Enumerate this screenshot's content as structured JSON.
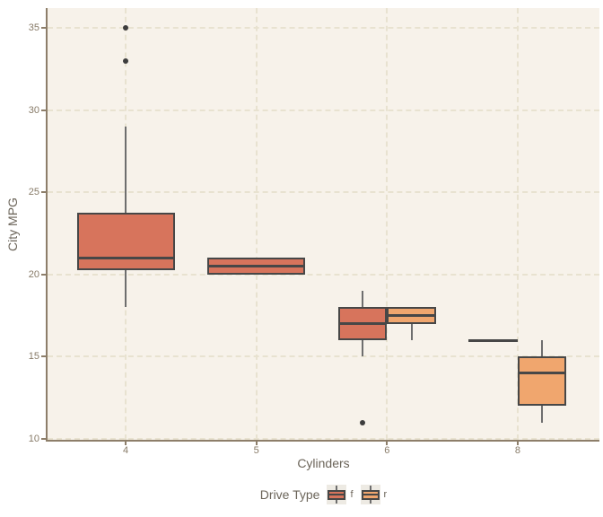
{
  "chart_data": {
    "type": "boxplot",
    "title": "",
    "xlabel": "Cylinders",
    "ylabel": "City MPG",
    "x_categories": [
      "4",
      "5",
      "6",
      "8"
    ],
    "y_ticks": [
      10,
      15,
      20,
      25,
      30,
      35
    ],
    "ylim": [
      10,
      35
    ],
    "grid": "dashed major gridlines horizontal and vertical",
    "legend": {
      "title": "Drive Type",
      "position": "bottom",
      "entries": [
        {
          "label": "f",
          "color": "#d7745c"
        },
        {
          "label": "r",
          "color": "#f0a66e"
        }
      ]
    },
    "series": [
      {
        "name": "f",
        "color": "#d7745c",
        "boxes": [
          {
            "category": "4",
            "dodge": "full",
            "low": 18,
            "q1": 20.25,
            "median": 21,
            "q3": 23.75,
            "high": 29,
            "outliers": [
              33,
              35
            ]
          },
          {
            "category": "5",
            "dodge": "full",
            "low": 20,
            "q1": 20,
            "median": 20.5,
            "q3": 21,
            "high": 21,
            "outliers": []
          },
          {
            "category": "6",
            "dodge": "left",
            "low": 15,
            "q1": 16,
            "median": 17,
            "q3": 18,
            "high": 19,
            "outliers": [
              11
            ]
          },
          {
            "category": "8",
            "dodge": "left",
            "low": 16,
            "q1": 16,
            "median": 16,
            "q3": 16,
            "high": 16,
            "outliers": []
          }
        ]
      },
      {
        "name": "r",
        "color": "#f0a66e",
        "boxes": [
          {
            "category": "6",
            "dodge": "right",
            "low": 16,
            "q1": 17,
            "median": 17.5,
            "q3": 18,
            "high": 18,
            "outliers": []
          },
          {
            "category": "8",
            "dodge": "right",
            "low": 11,
            "q1": 12,
            "median": 14,
            "q3": 15,
            "high": 16,
            "outliers": []
          }
        ]
      }
    ],
    "style": {
      "panel_background": "#f7f2ea",
      "outer_background": "#ffffff",
      "gridline_color": "#e8e2d0",
      "axis_line_color": "#8d7e6a",
      "tick_label_color": "#877a67",
      "title_text_color": "#6b6459",
      "box_border_color": "#474747",
      "whisker_color": "#6e6e6e",
      "outlier_color": "#3d3d3d"
    }
  }
}
